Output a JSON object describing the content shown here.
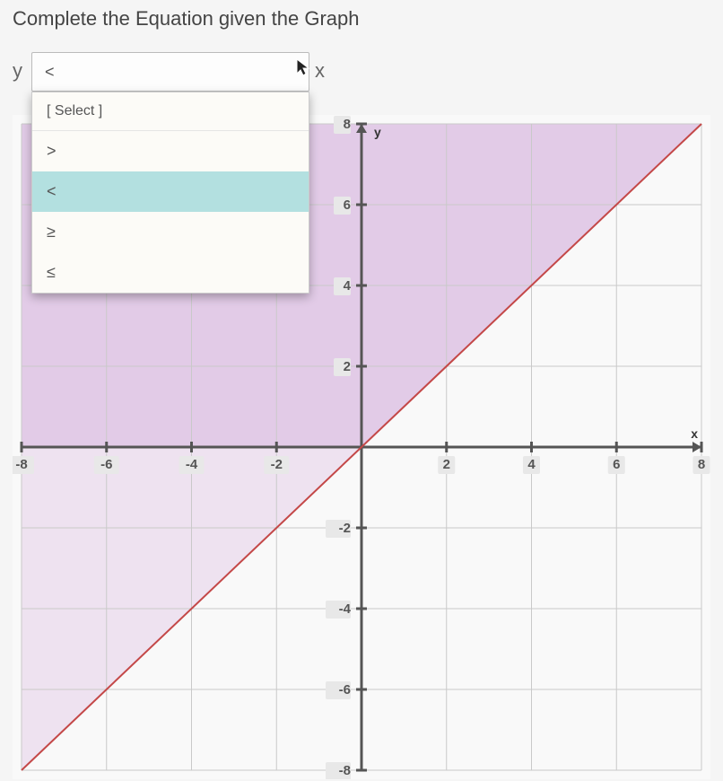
{
  "prompt": "Complete the Equation given the Graph",
  "equation": {
    "lhs": "y",
    "rhs": "x",
    "select_current": "<",
    "select_placeholder": "[ Select ]",
    "options": [
      ">",
      "<",
      "≥",
      "≤"
    ],
    "highlighted_index": 1
  },
  "graph": {
    "type": "inequality-plot",
    "x_axis": {
      "label": "x",
      "min": -8,
      "max": 8,
      "step": 2
    },
    "y_axis": {
      "label": "y",
      "min": -8,
      "max": 8,
      "step": 2
    },
    "grid_color": "#c9c9c9",
    "axis_color": "#555555",
    "background_color": "#f9f9f9",
    "shaded_region": {
      "condition": "y > x",
      "fill_color": "#d9b8e0",
      "fill_opacity_upper": 0.7,
      "fill_opacity_lower": 0.35
    },
    "boundary_line": {
      "equation": "y = x",
      "color": "#c44848",
      "width": 2,
      "style": "solid"
    },
    "tick_label_bg": "#e8e8e8",
    "tick_label_color": "#555555",
    "tick_fontsize": 15
  }
}
